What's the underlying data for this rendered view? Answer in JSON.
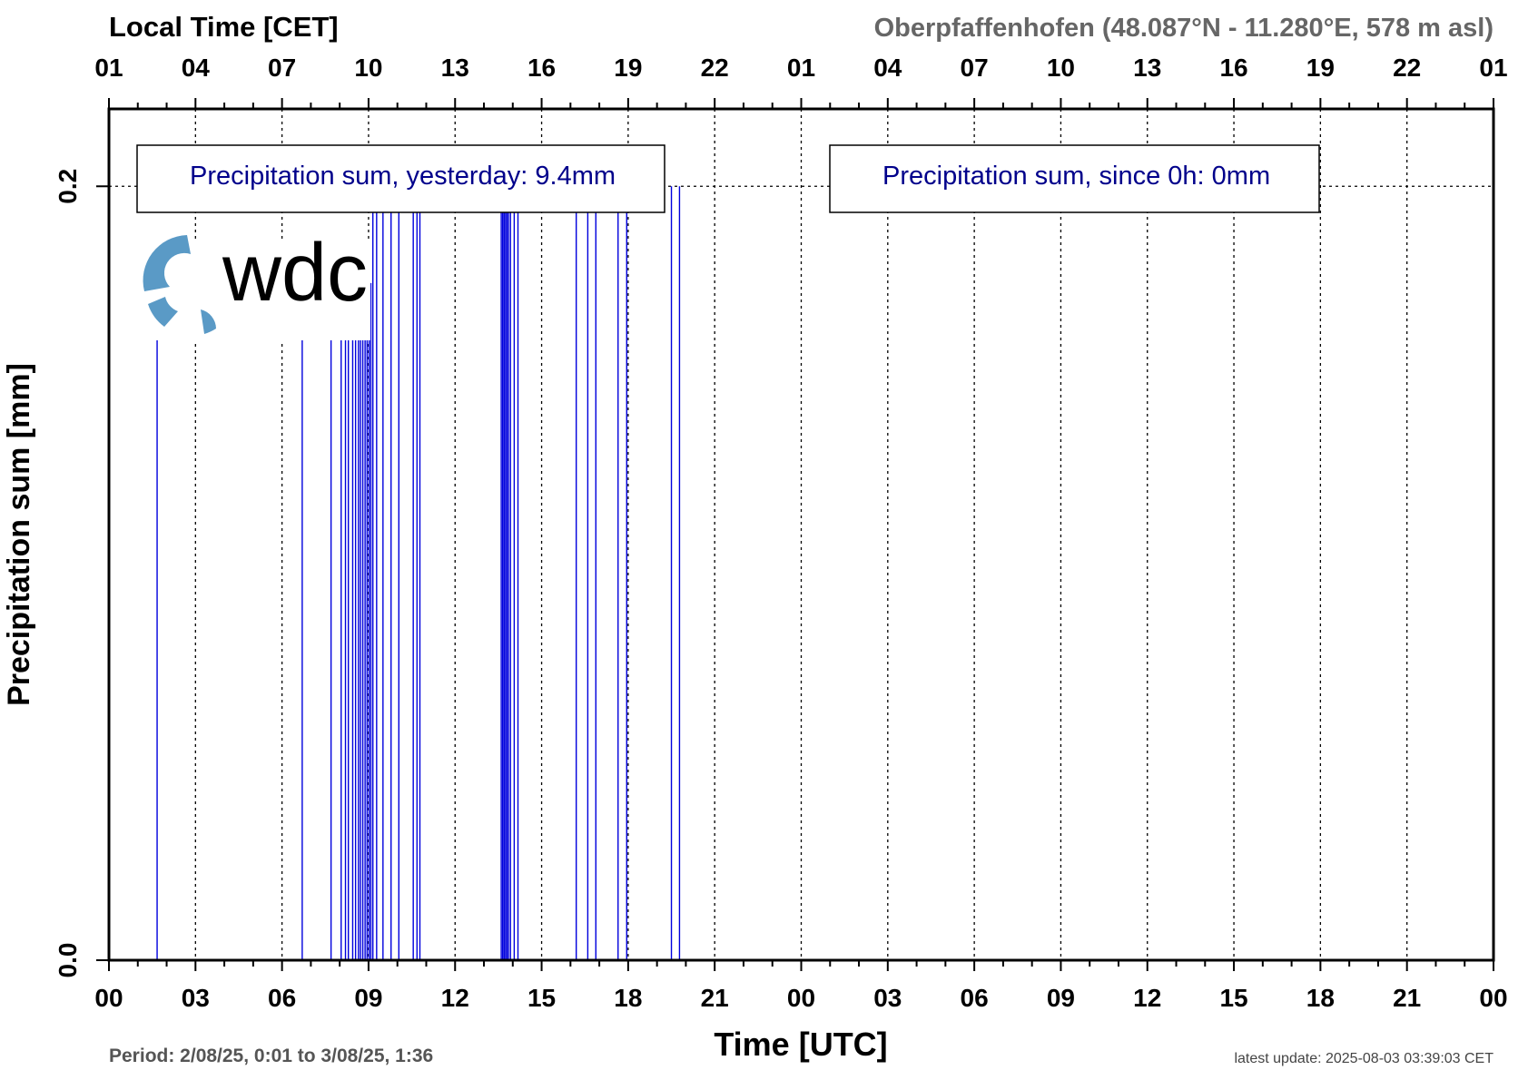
{
  "chart_data": {
    "type": "bar",
    "title_left": "Local Time [CET]",
    "title_right": "Oberpfaffenhofen (48.087°N - 11.280°E, 578 m asl)",
    "xlabel": "Time [UTC]",
    "ylabel": "Precipitation sum [mm]",
    "ylim": [
      0.0,
      0.22
    ],
    "xlim": [
      0,
      48
    ],
    "y_ticks": [
      "0.0",
      "0.2"
    ],
    "y_tick_values": [
      0.0,
      0.2
    ],
    "x_ticks_bottom": [
      "00",
      "03",
      "06",
      "09",
      "12",
      "15",
      "18",
      "21",
      "00",
      "03",
      "06",
      "09",
      "12",
      "15",
      "18",
      "21",
      "00"
    ],
    "x_ticks_top": [
      "01",
      "04",
      "07",
      "10",
      "13",
      "16",
      "19",
      "22",
      "01",
      "04",
      "07",
      "10",
      "13",
      "16",
      "19",
      "22",
      "01"
    ],
    "grid": true,
    "color": "#0000dd",
    "annotations": {
      "yesterday": "Precipitation sum, yesterday: 9.4mm",
      "today": "Precipitation sum, since 0h: 0mm"
    },
    "period": "Period: 2/08/25, 0:01 to 3/08/25, 1:36",
    "latest_update": "latest update: 2025-08-03 03:39:03 CET",
    "logo_text": "wdc",
    "bars": [
      {
        "x": 1.67,
        "y": 0.175
      },
      {
        "x": 6.7,
        "y": 0.175
      },
      {
        "x": 7.7,
        "y": 0.175
      },
      {
        "x": 8.05,
        "y": 0.175
      },
      {
        "x": 8.2,
        "y": 0.175
      },
      {
        "x": 8.3,
        "y": 0.175
      },
      {
        "x": 8.45,
        "y": 0.175
      },
      {
        "x": 8.55,
        "y": 0.175
      },
      {
        "x": 8.65,
        "y": 0.175
      },
      {
        "x": 8.72,
        "y": 0.175
      },
      {
        "x": 8.8,
        "y": 0.175
      },
      {
        "x": 8.88,
        "y": 0.175
      },
      {
        "x": 8.95,
        "y": 0.175
      },
      {
        "x": 9.02,
        "y": 0.175
      },
      {
        "x": 9.08,
        "y": 0.175
      },
      {
        "x": 9.15,
        "y": 0.2
      },
      {
        "x": 9.28,
        "y": 0.2
      },
      {
        "x": 9.5,
        "y": 0.2
      },
      {
        "x": 9.78,
        "y": 0.2
      },
      {
        "x": 10.05,
        "y": 0.2
      },
      {
        "x": 10.55,
        "y": 0.2
      },
      {
        "x": 10.68,
        "y": 0.2
      },
      {
        "x": 10.78,
        "y": 0.2
      },
      {
        "x": 13.6,
        "y": 0.2
      },
      {
        "x": 13.65,
        "y": 0.2
      },
      {
        "x": 13.7,
        "y": 0.2
      },
      {
        "x": 13.75,
        "y": 0.2
      },
      {
        "x": 13.8,
        "y": 0.2
      },
      {
        "x": 13.85,
        "y": 0.2
      },
      {
        "x": 13.92,
        "y": 0.2
      },
      {
        "x": 14.05,
        "y": 0.2
      },
      {
        "x": 14.18,
        "y": 0.2
      },
      {
        "x": 16.2,
        "y": 0.2
      },
      {
        "x": 16.6,
        "y": 0.2
      },
      {
        "x": 16.88,
        "y": 0.2
      },
      {
        "x": 17.65,
        "y": 0.2
      },
      {
        "x": 17.95,
        "y": 0.2
      },
      {
        "x": 19.5,
        "y": 0.2
      },
      {
        "x": 19.78,
        "y": 0.2
      }
    ]
  }
}
